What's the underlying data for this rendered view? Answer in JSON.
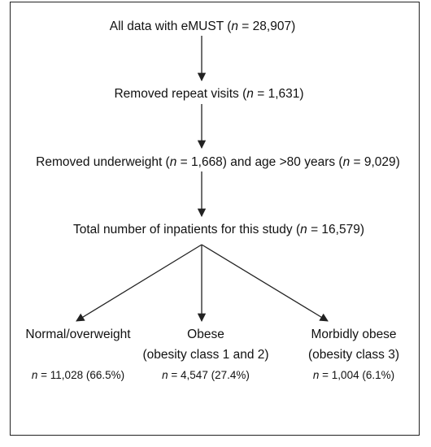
{
  "flowchart": {
    "nodes": {
      "all_data": {
        "pre": "All data with eMUST (",
        "n": "n",
        "post": " = 28,907)"
      },
      "repeat": {
        "pre": "Removed repeat visits (",
        "n": "n",
        "post": " = 1,631)"
      },
      "under": {
        "pre": "Removed underweight (",
        "n": "n",
        "mid": " = 1,668) and age >80 years (",
        "n2": "n",
        "post": " = 9,029)"
      },
      "total": {
        "pre": "Total number of inpatients for this study (",
        "n": "n",
        "post": " = 16,579)"
      }
    },
    "outcomes": [
      {
        "label": "Normal/overweight",
        "sublabel": "",
        "n": "n",
        "count": " = 11,028 (66.5%)"
      },
      {
        "label": "Obese",
        "sublabel": "(obesity class 1 and 2)",
        "n": "n",
        "count": " = 4,547 (27.4%)"
      },
      {
        "label": "Morbidly obese",
        "sublabel": "(obesity class 3)",
        "n": "n",
        "count": " = 1,004 (6.1%)"
      }
    ]
  },
  "colors": {
    "line": "#222222",
    "text": "#111111",
    "background": "#ffffff"
  }
}
